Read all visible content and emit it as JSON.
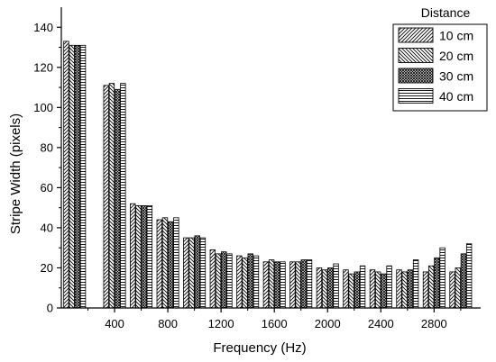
{
  "chart_data": {
    "type": "bar",
    "title": "",
    "xlabel": "Frequency (Hz)",
    "ylabel": "Stripe Width (pixels)",
    "ylim": [
      0,
      150
    ],
    "xlim": [
      0,
      3150
    ],
    "x_tick_values": [
      400,
      800,
      1200,
      1600,
      2000,
      2400,
      2800
    ],
    "x_tick_labels": [
      "400",
      "800",
      "1200",
      "1600",
      "2000",
      "2400",
      "2800"
    ],
    "y_tick_values": [
      0,
      20,
      40,
      60,
      80,
      100,
      120,
      140
    ],
    "y_tick_labels": [
      "0",
      "20",
      "40",
      "60",
      "80",
      "100",
      "120",
      "140"
    ],
    "categories": [
      100,
      400,
      600,
      800,
      1000,
      1200,
      1400,
      1600,
      1800,
      2000,
      2200,
      2400,
      2600,
      2800,
      3000
    ],
    "legend_title": "Distance",
    "legend_position": "top-right",
    "grid": false,
    "series": [
      {
        "name": "10 cm",
        "pattern": "diag-up",
        "values": [
          133,
          111,
          52,
          44,
          35,
          29,
          26,
          23,
          23,
          20,
          19,
          19,
          19,
          18,
          18
        ]
      },
      {
        "name": "20 cm",
        "pattern": "diag-down",
        "values": [
          131,
          112,
          51,
          45,
          35,
          27,
          25,
          24,
          23,
          19,
          17,
          18,
          18,
          21,
          20
        ]
      },
      {
        "name": "30 cm",
        "pattern": "crosshatch",
        "values": [
          131,
          109,
          51,
          43,
          36,
          28,
          27,
          23,
          24,
          20,
          18,
          17,
          19,
          25,
          27
        ]
      },
      {
        "name": "40 cm",
        "pattern": "horizontal",
        "values": [
          131,
          112,
          51,
          45,
          35,
          27,
          26,
          23,
          24,
          22,
          21,
          21,
          24,
          30,
          32
        ]
      }
    ]
  }
}
